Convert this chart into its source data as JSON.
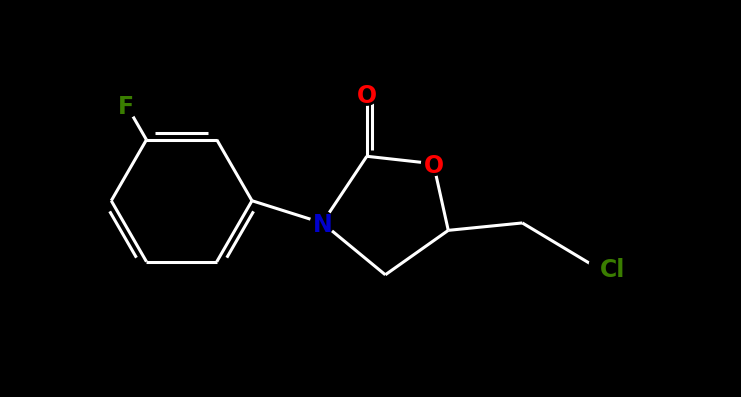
{
  "background_color": "#000000",
  "bond_color": "#ffffff",
  "atom_colors": {
    "O": "#ff0000",
    "N": "#0000cc",
    "F": "#3a7d00",
    "Cl": "#3a7d00",
    "C": "#ffffff"
  },
  "bond_width": 2.2,
  "font_size": 16,
  "xlim": [
    0,
    10
  ],
  "ylim": [
    0,
    5.36
  ]
}
